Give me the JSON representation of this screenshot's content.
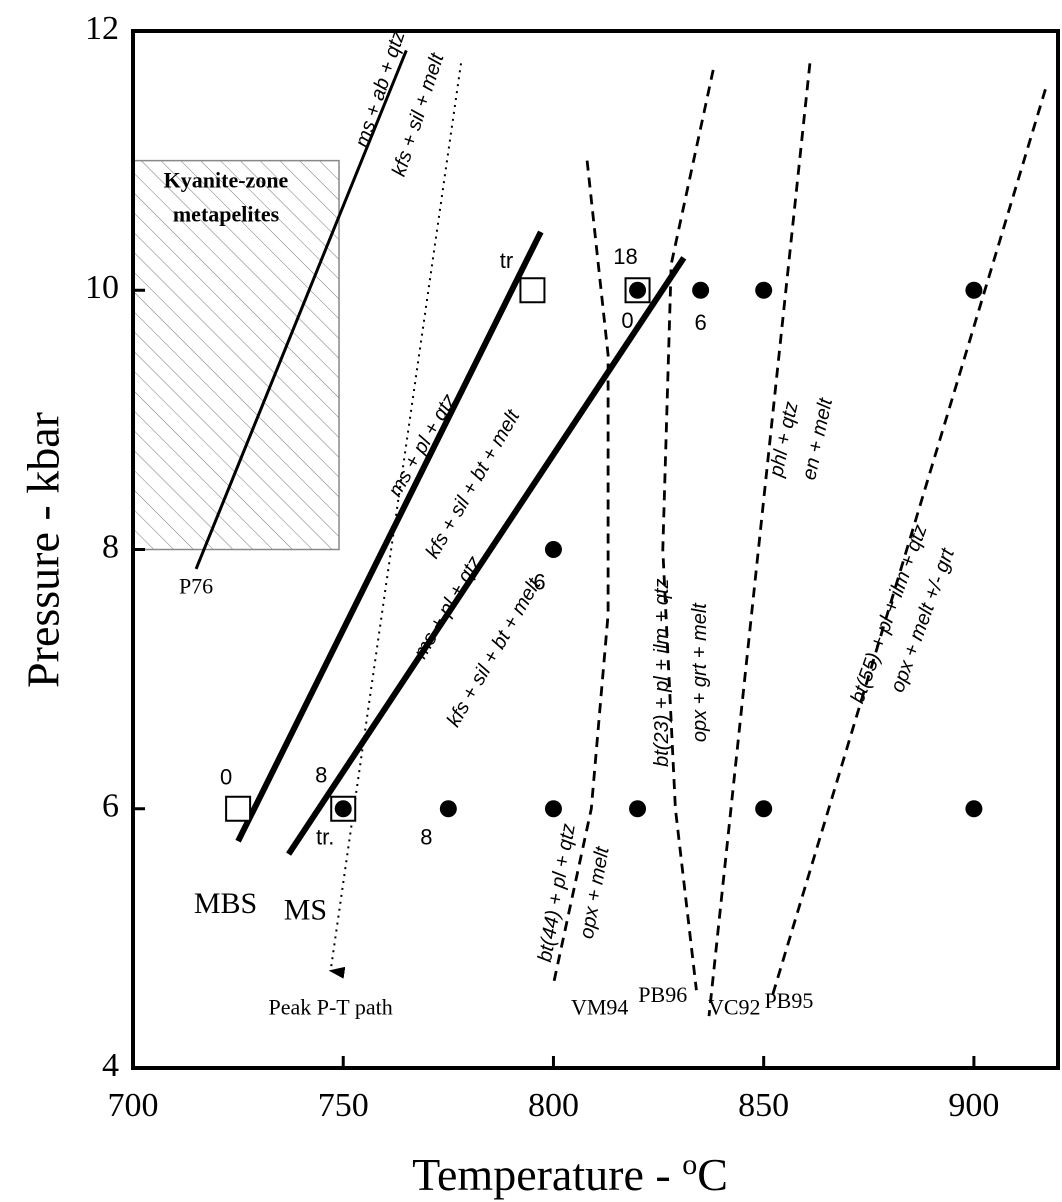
{
  "chart_data": {
    "type": "scatter",
    "xlabel": "Temperature - ",
    "xlabel_unit": "oC",
    "ylabel": "Pressure - kbar",
    "xlim": [
      700,
      920
    ],
    "ylim": [
      4,
      12
    ],
    "x_ticks": [
      700,
      750,
      800,
      850,
      900
    ],
    "y_ticks": [
      4,
      6,
      8,
      10,
      12
    ],
    "shaded_region": {
      "x": [
        700,
        749
      ],
      "y": [
        8,
        11
      ],
      "label_lines": [
        "Kyanite-zone",
        "metapelites"
      ]
    },
    "lines": [
      {
        "id": "P76",
        "style": "solid-thin",
        "points": [
          [
            715,
            7.85
          ],
          [
            765,
            11.85
          ]
        ],
        "label": "P76",
        "upper": "ms + ab + qtz",
        "lower": "kfs + sil + melt"
      },
      {
        "id": "MBS",
        "style": "solid-thick",
        "points": [
          [
            725,
            5.75
          ],
          [
            797,
            10.45
          ]
        ],
        "label": "MBS",
        "upper": "ms + pl + qtz",
        "lower": "kfs + sil + bt + melt"
      },
      {
        "id": "MS",
        "style": "solid-thick",
        "points": [
          [
            737,
            5.65
          ],
          [
            831,
            10.25
          ]
        ],
        "label": "MS",
        "upper": "ms + pl + qtz",
        "lower": "kfs + sil + bt + melt"
      },
      {
        "id": "peak-path",
        "style": "dotted-arrow",
        "points": [
          [
            778,
            11.75
          ],
          [
            747,
            4.75
          ]
        ],
        "label": "Peak P-T path"
      },
      {
        "id": "VM94",
        "style": "dashed",
        "points": [
          [
            808,
            11.0
          ],
          [
            813,
            9.5
          ],
          [
            813,
            7.5
          ],
          [
            809,
            6.0
          ],
          [
            800,
            4.65
          ]
        ],
        "label": "VM94",
        "upper": "bt(44) + pl + qtz",
        "lower": "opx + melt"
      },
      {
        "id": "PB96",
        "style": "dashed",
        "points": [
          [
            838,
            11.7
          ],
          [
            828,
            10.2
          ],
          [
            826,
            8.0
          ],
          [
            829,
            6.0
          ],
          [
            834,
            4.6
          ]
        ],
        "label": "PB96",
        "upper": "bt(23) + pl + ilm + qtz",
        "lower": "opx + grt + melt"
      },
      {
        "id": "VC92",
        "style": "dashed",
        "points": [
          [
            861,
            11.75
          ],
          [
            837,
            4.4
          ]
        ],
        "label": "VC92",
        "upper": "phl + qtz",
        "lower": "en + melt"
      },
      {
        "id": "PB95",
        "style": "dashed",
        "points": [
          [
            917,
            11.55
          ],
          [
            852,
            4.55
          ]
        ],
        "label": "PB95",
        "upper": "bt(55) + pl + ilm + qtz",
        "lower": "opx + melt +/- grt"
      }
    ],
    "points": [
      {
        "x": 725,
        "y": 6,
        "marker": "open-square",
        "label": "0"
      },
      {
        "x": 750,
        "y": 6,
        "marker": "filled-circle-in-square",
        "label": "8",
        "label2": "tr."
      },
      {
        "x": 775,
        "y": 6,
        "marker": "filled-circle",
        "label": "8"
      },
      {
        "x": 800,
        "y": 6,
        "marker": "filled-circle"
      },
      {
        "x": 820,
        "y": 6,
        "marker": "filled-circle"
      },
      {
        "x": 850,
        "y": 6,
        "marker": "filled-circle"
      },
      {
        "x": 900,
        "y": 6,
        "marker": "filled-circle"
      },
      {
        "x": 800,
        "y": 8,
        "marker": "filled-circle",
        "label": "6"
      },
      {
        "x": 795,
        "y": 10,
        "marker": "open-square",
        "label": "tr"
      },
      {
        "x": 820,
        "y": 10,
        "marker": "filled-circle-in-square",
        "label": "18",
        "label2": "0"
      },
      {
        "x": 835,
        "y": 10,
        "marker": "filled-circle",
        "label": "6"
      },
      {
        "x": 850,
        "y": 10,
        "marker": "filled-circle"
      },
      {
        "x": 900,
        "y": 10,
        "marker": "filled-circle"
      }
    ]
  }
}
